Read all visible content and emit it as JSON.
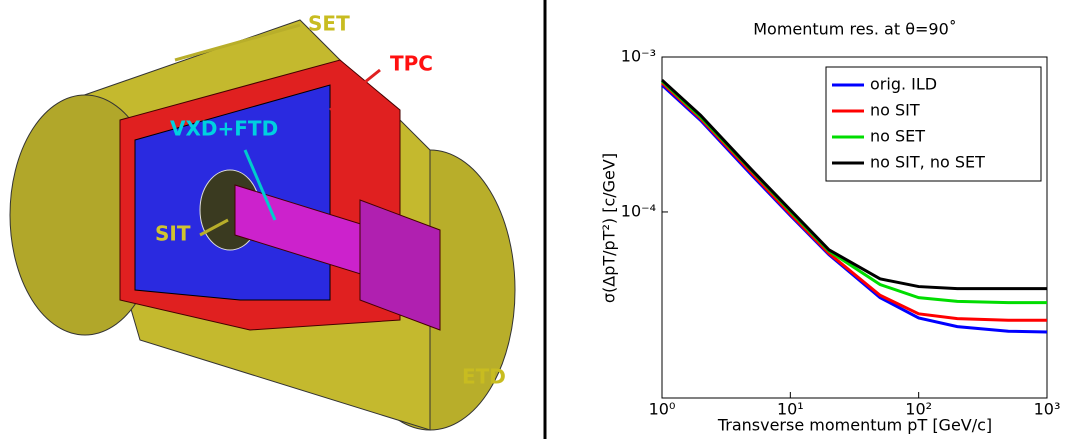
{
  "detector": {
    "labels": [
      "SET",
      "TPC",
      "VXD+FTD",
      "SIT",
      "ETD"
    ]
  },
  "chart_data": {
    "type": "line",
    "title": "Momentum res. at θ=90˚",
    "x_label": "Transverse momentum pT [GeV/c]",
    "y_label": "σ(ΔpT/pT²) [c/GeV]",
    "x": [
      1,
      2,
      5,
      10,
      20,
      50,
      100,
      200,
      500,
      1000
    ],
    "series": [
      {
        "name": "orig. ILD",
        "color": "#0000ff",
        "values": [
          0.00066,
          0.00039,
          0.000173,
          9.5e-05,
          5.3e-05,
          2.8e-05,
          2.07e-05,
          1.82e-05,
          1.7e-05,
          1.68e-05
        ]
      },
      {
        "name": "no SIT",
        "color": "#ff0000",
        "values": [
          0.00068,
          0.0004,
          0.000178,
          9.7e-05,
          5.4e-05,
          2.9e-05,
          2.2e-05,
          2.05e-05,
          2e-05,
          2e-05
        ]
      },
      {
        "name": "no SET",
        "color": "#00dd00",
        "values": [
          0.0007,
          0.00041,
          0.000185,
          0.000101,
          5.6e-05,
          3.4e-05,
          2.8e-05,
          2.65e-05,
          2.6e-05,
          2.6e-05
        ]
      },
      {
        "name": "no SIT, no SET",
        "color": "#000000",
        "values": [
          0.00071,
          0.00042,
          0.000187,
          0.000103,
          5.7e-05,
          3.7e-05,
          3.3e-05,
          3.2e-05,
          3.2e-05,
          3.2e-05
        ]
      }
    ],
    "xlim": [
      1,
      1000
    ],
    "ylim": [
      6.3e-06,
      0.001
    ],
    "xticks": [
      {
        "value": 1,
        "label": "10⁰"
      },
      {
        "value": 10,
        "label": "10¹"
      },
      {
        "value": 100,
        "label": "10²"
      },
      {
        "value": 1000,
        "label": "10³"
      }
    ],
    "yticks": [
      {
        "value": 0.001,
        "label": "10⁻³"
      },
      {
        "value": 0.0001,
        "label": "10⁻⁴"
      }
    ],
    "x_scale": "log",
    "y_scale": "log",
    "legend": "upper right"
  }
}
